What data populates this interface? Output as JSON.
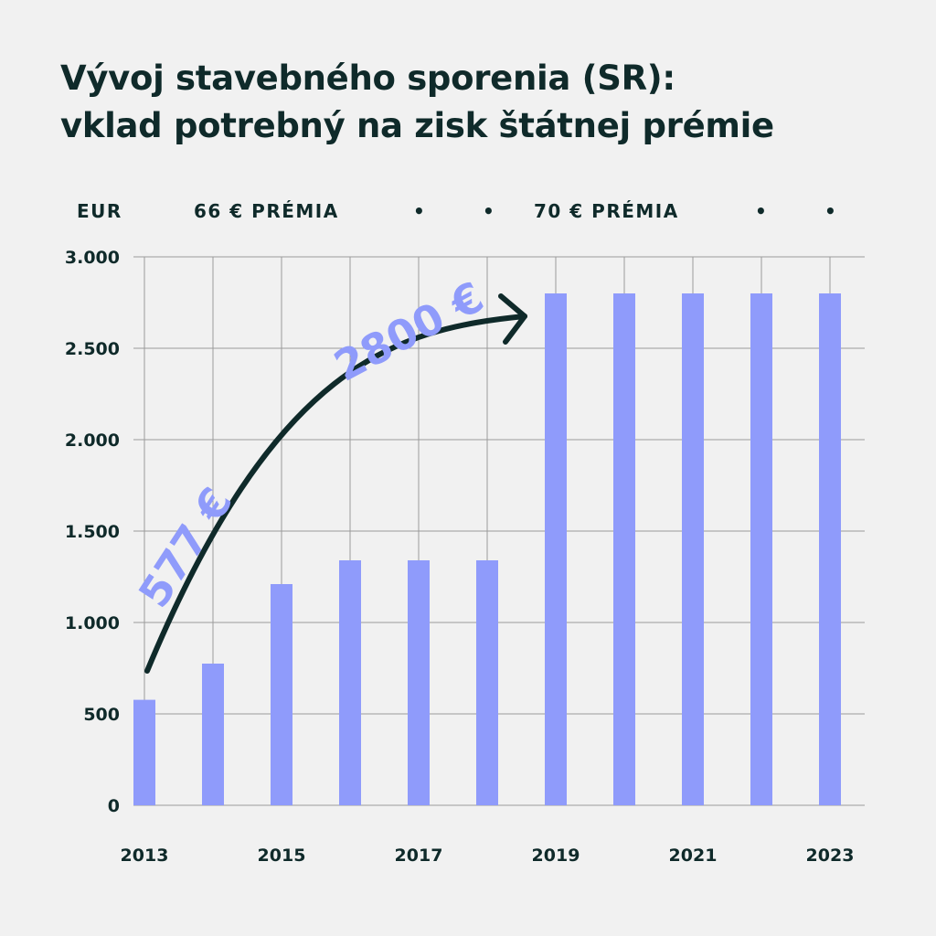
{
  "title": {
    "line1": "Vývoj stavebného sporenia (SR):",
    "line2": "vklad potrebný na zisk štátnej prémie"
  },
  "header": {
    "unit": "EUR",
    "premium_left": "66 € PRÉMIA",
    "premium_right": "70 € PRÉMIA",
    "dot": "•"
  },
  "annotations": {
    "start_value": "577 €",
    "end_value": "2800 €"
  },
  "colors": {
    "bar": "#8f9bfb",
    "text": "#0f2a2a",
    "grid": "#9a9a9a",
    "background": "#f1f1f1",
    "arrow": "#0f2a2a",
    "annotation": "#8f9bfb"
  },
  "chart_data": {
    "type": "bar",
    "categories": [
      "2013",
      "2014",
      "2015",
      "2016",
      "2017",
      "2018",
      "2019",
      "2020",
      "2021",
      "2022",
      "2023"
    ],
    "x_tick_labels": [
      "2013",
      "",
      "2015",
      "",
      "2017",
      "",
      "2019",
      "",
      "2021",
      "",
      "2023"
    ],
    "values": [
      577,
      775,
      1210,
      1340,
      1340,
      1340,
      2800,
      2800,
      2800,
      2800,
      2800
    ],
    "y_ticks": [
      0,
      500,
      1000,
      1500,
      2000,
      2500,
      3000
    ],
    "y_tick_labels": [
      "0",
      "500",
      "1.000",
      "1.500",
      "2.000",
      "2.500",
      "3.000"
    ],
    "ylim": [
      0,
      3000
    ],
    "ylabel": "EUR",
    "grid": true
  }
}
